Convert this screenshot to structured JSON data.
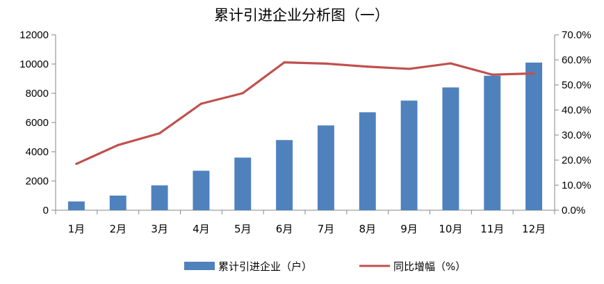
{
  "chart_data": {
    "type": "bar+line",
    "title": "累计引进企业分析图（一）",
    "categories": [
      "1月",
      "2月",
      "3月",
      "4月",
      "5月",
      "6月",
      "7月",
      "8月",
      "9月",
      "10月",
      "11月",
      "12月"
    ],
    "series": [
      {
        "name": "累计引进企业（户）",
        "type": "bar",
        "axis": "left",
        "values": [
          600,
          1000,
          1700,
          2700,
          3600,
          4800,
          5800,
          6700,
          7500,
          8400,
          9200,
          10100
        ]
      },
      {
        "name": "同比增幅（%）",
        "type": "line",
        "axis": "right",
        "values": [
          18.5,
          26.0,
          30.7,
          42.5,
          46.7,
          59.0,
          58.5,
          57.3,
          56.4,
          58.6,
          54.1,
          54.6
        ]
      }
    ],
    "y_left": {
      "min": 0,
      "max": 12000,
      "ticks": [
        "0",
        "2000",
        "4000",
        "6000",
        "8000",
        "10000",
        "12000"
      ]
    },
    "y_right": {
      "min": 0,
      "max": 70,
      "ticks": [
        "0.0%",
        "10.0%",
        "20.0%",
        "30.0%",
        "40.0%",
        "50.0%",
        "60.0%",
        "70.0%"
      ]
    },
    "legend_position": "bottom",
    "grid": false,
    "colors": {
      "bar": "#4f81bd",
      "line": "#c0504d",
      "axis": "#868686"
    }
  }
}
